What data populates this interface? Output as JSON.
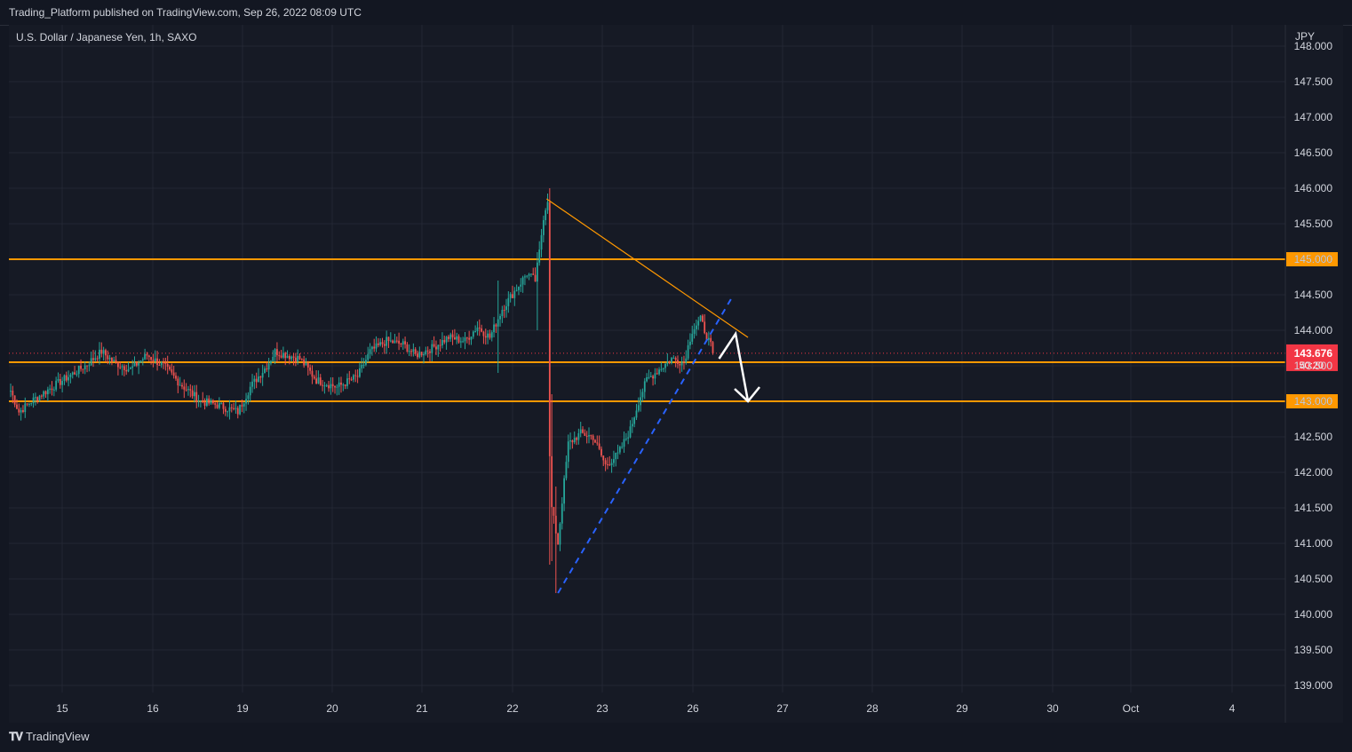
{
  "header": {
    "published": "Trading_Platform published on TradingView.com, Sep 26, 2022 08:09 UTC"
  },
  "symbol": {
    "label": "U.S. Dollar / Japanese Yen, 1h, SAXO",
    "currency": "JPY"
  },
  "footer": {
    "brand": "TradingView",
    "brand_icon": "tradingview-logo-icon"
  },
  "colors": {
    "up": "#26a69a",
    "down": "#ef5350",
    "level": "#ff9800",
    "trend": "#2962ff",
    "arrow": "#ffffff",
    "last": "#f23645"
  },
  "chart_data": {
    "type": "candlestick",
    "title": "U.S. Dollar / Japanese Yen, 1h, SAXO",
    "ylabel": "JPY",
    "ylim": [
      138.9,
      148.3
    ],
    "y_ticks": [
      "148.000",
      "147.500",
      "147.000",
      "146.500",
      "146.000",
      "145.500",
      "145.000",
      "144.500",
      "144.000",
      "143.500",
      "143.000",
      "142.500",
      "142.000",
      "141.500",
      "141.000",
      "140.500",
      "140.000",
      "139.500",
      "139.000"
    ],
    "x_ticks": [
      "15",
      "16",
      "19",
      "20",
      "21",
      "22",
      "23",
      "26",
      "27",
      "28",
      "29",
      "30",
      "Oct",
      "4"
    ],
    "grid": true,
    "levels": [
      {
        "price": 145.0,
        "label": "145.000"
      },
      {
        "price": 143.55,
        "label": "143.550"
      },
      {
        "price": 143.0,
        "label": "143.000"
      }
    ],
    "last_price": {
      "price": 143.676,
      "label": "143.676",
      "countdown": "50:20"
    },
    "series": [
      {
        "name": "USDJPY",
        "anchors": [
          [
            0,
            143.15
          ],
          [
            4,
            142.85
          ],
          [
            10,
            143.0
          ],
          [
            20,
            143.2
          ],
          [
            28,
            143.35
          ],
          [
            36,
            143.5
          ],
          [
            44,
            143.7
          ],
          [
            50,
            143.55
          ],
          [
            58,
            143.45
          ],
          [
            66,
            143.65
          ],
          [
            74,
            143.5
          ],
          [
            82,
            143.25
          ],
          [
            92,
            143.0
          ],
          [
            100,
            142.95
          ],
          [
            110,
            142.85
          ],
          [
            116,
            143.2
          ],
          [
            124,
            143.5
          ],
          [
            128,
            143.7
          ],
          [
            140,
            143.6
          ],
          [
            148,
            143.3
          ],
          [
            158,
            143.2
          ],
          [
            168,
            143.35
          ],
          [
            174,
            143.7
          ],
          [
            182,
            143.85
          ],
          [
            190,
            143.8
          ],
          [
            196,
            143.65
          ],
          [
            204,
            143.75
          ],
          [
            212,
            143.9
          ],
          [
            220,
            143.85
          ],
          [
            226,
            144.05
          ],
          [
            232,
            143.9
          ],
          [
            238,
            144.3
          ],
          [
            244,
            144.55
          ],
          [
            250,
            144.8
          ],
          [
            254,
            144.7
          ],
          [
            256,
            145.1
          ],
          [
            258,
            145.6
          ],
          [
            260,
            145.85
          ],
          [
            261,
            142.2
          ],
          [
            262,
            141.5
          ],
          [
            265,
            141.0
          ],
          [
            267,
            141.6
          ],
          [
            270,
            142.4
          ],
          [
            276,
            142.55
          ],
          [
            282,
            142.5
          ],
          [
            288,
            142.1
          ],
          [
            294,
            142.25
          ],
          [
            300,
            142.6
          ],
          [
            304,
            143.0
          ],
          [
            308,
            143.3
          ],
          [
            314,
            143.45
          ],
          [
            320,
            143.6
          ],
          [
            326,
            143.55
          ],
          [
            330,
            144.0
          ],
          [
            334,
            144.15
          ],
          [
            338,
            143.85
          ],
          [
            340,
            143.7
          ]
        ]
      }
    ],
    "annotations": [
      {
        "kind": "resistance-trendline",
        "from": [
          259.5,
          145.85
        ],
        "to": [
          357,
          143.9
        ]
      },
      {
        "kind": "support-trendline-dashed",
        "from": [
          265,
          140.3
        ],
        "to": [
          349,
          144.45
        ]
      },
      {
        "kind": "forecast-arrow",
        "points": [
          [
            343,
            143.6
          ],
          [
            351,
            143.95
          ],
          [
            357,
            143.0
          ]
        ]
      }
    ]
  }
}
